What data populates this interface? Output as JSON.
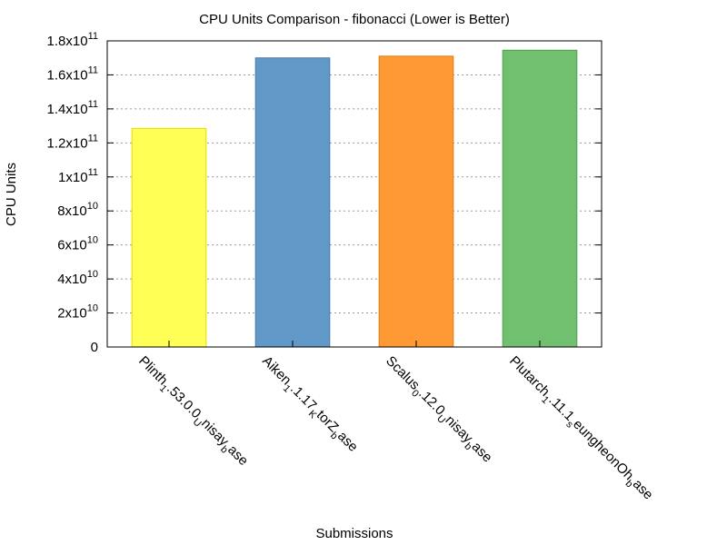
{
  "chart_data": {
    "type": "bar",
    "title": "CPU Units Comparison - fibonacci (Lower is Better)",
    "xlabel": "Submissions",
    "ylabel": "CPU Units",
    "ylim": [
      0,
      180000000000
    ],
    "grid": true,
    "yticks": [
      {
        "value": 0,
        "mantissa": "0",
        "exp": ""
      },
      {
        "value": 20000000000,
        "mantissa": "2x10",
        "exp": "10"
      },
      {
        "value": 40000000000,
        "mantissa": "4x10",
        "exp": "10"
      },
      {
        "value": 60000000000,
        "mantissa": "6x10",
        "exp": "10"
      },
      {
        "value": 80000000000,
        "mantissa": "8x10",
        "exp": "10"
      },
      {
        "value": 100000000000,
        "mantissa": "1x10",
        "exp": "11"
      },
      {
        "value": 120000000000,
        "mantissa": "1.2x10",
        "exp": "11"
      },
      {
        "value": 140000000000,
        "mantissa": "1.4x10",
        "exp": "11"
      },
      {
        "value": 160000000000,
        "mantissa": "1.6x10",
        "exp": "11"
      },
      {
        "value": 180000000000,
        "mantissa": "1.8x10",
        "exp": "11"
      }
    ],
    "categories": [
      {
        "parts": [
          [
            "Plinth",
            "n"
          ],
          [
            "1",
            "sub"
          ],
          [
            ".53.0.0",
            "n"
          ],
          [
            "U",
            "sub"
          ],
          [
            "nisay",
            "n"
          ],
          [
            "b",
            "sub"
          ],
          [
            "ase",
            "n"
          ]
        ]
      },
      {
        "parts": [
          [
            "Aiken",
            "n"
          ],
          [
            "1",
            "sub"
          ],
          [
            ".1.17",
            "n"
          ],
          [
            "K",
            "sub"
          ],
          [
            "torZ",
            "n"
          ],
          [
            "b",
            "sub"
          ],
          [
            "ase",
            "n"
          ]
        ]
      },
      {
        "parts": [
          [
            "Scalus",
            "n"
          ],
          [
            "0",
            "sub"
          ],
          [
            ".12.0",
            "n"
          ],
          [
            "U",
            "sub"
          ],
          [
            "nisay",
            "n"
          ],
          [
            "b",
            "sub"
          ],
          [
            "ase",
            "n"
          ]
        ]
      },
      {
        "parts": [
          [
            "Plutarch",
            "n"
          ],
          [
            "1",
            "sub"
          ],
          [
            ".11.1",
            "n"
          ],
          [
            "s",
            "sub"
          ],
          [
            "eungheonOh",
            "n"
          ],
          [
            "b",
            "sub"
          ],
          [
            "ase",
            "n"
          ]
        ]
      }
    ],
    "values": [
      128500000000,
      170000000000,
      171000000000,
      174500000000
    ],
    "colors": [
      "#ffff55",
      "#6098c8",
      "#ff9933",
      "#70c070"
    ],
    "edge_colors": [
      "#e0e000",
      "#4a7aa8",
      "#e07a10",
      "#50a050"
    ]
  }
}
